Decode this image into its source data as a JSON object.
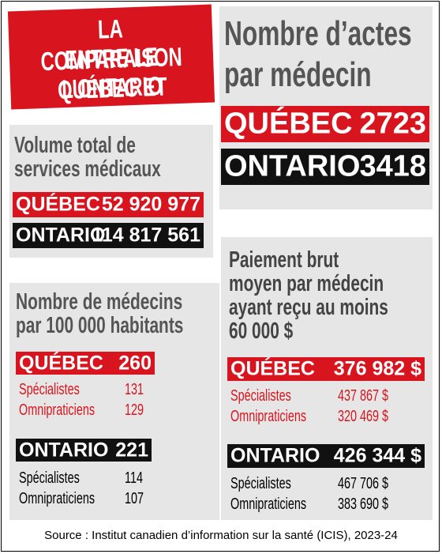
{
  "title": {
    "lines": [
      "LA COMPARAISON",
      "ENTRE LE QUÉBEC ET",
      "L’ONTARIO"
    ]
  },
  "actes": {
    "title": [
      "Nombre d’actes",
      "par médecin"
    ],
    "rows": [
      {
        "label": "QUÉBEC",
        "value": "2723"
      },
      {
        "label": "ONTARIO",
        "value": "3418"
      }
    ]
  },
  "volume": {
    "title": [
      "Volume total de",
      "services médicaux"
    ],
    "rows": [
      {
        "label": "QUÉBEC",
        "value": "52 920 977"
      },
      {
        "label": "ONTARIO",
        "value": "114 817 561"
      }
    ]
  },
  "medecins": {
    "title": [
      "Nombre de médecins",
      "par 100 000 habitants"
    ],
    "groups": [
      {
        "label": "QUÉBEC",
        "value": "260",
        "rows": [
          {
            "label": "Spécialistes",
            "value": "131"
          },
          {
            "label": "Omnipraticiens",
            "value": "129"
          }
        ]
      },
      {
        "label": "ONTARIO",
        "value": "221",
        "rows": [
          {
            "label": "Spécialistes",
            "value": "114"
          },
          {
            "label": "Omnipraticiens",
            "value": "107"
          }
        ]
      }
    ]
  },
  "paiement": {
    "title": [
      "Paiement brut",
      "moyen par médecin",
      "ayant reçu au moins",
      "60 000 $"
    ],
    "groups": [
      {
        "label": "QUÉBEC",
        "value": "376 982 $",
        "rows": [
          {
            "label": "Spécialistes",
            "value": "437 867 $"
          },
          {
            "label": "Omnipraticiens",
            "value": "320 469 $"
          }
        ]
      },
      {
        "label": "ONTARIO",
        "value": "426 344 $",
        "rows": [
          {
            "label": "Spécialistes",
            "value": "467 706 $"
          },
          {
            "label": "Omnipraticiens",
            "value": "383 690 $"
          }
        ]
      }
    ]
  },
  "source": "Source : Institut canadien d’information sur la santé (ICIS), 2023-24"
}
